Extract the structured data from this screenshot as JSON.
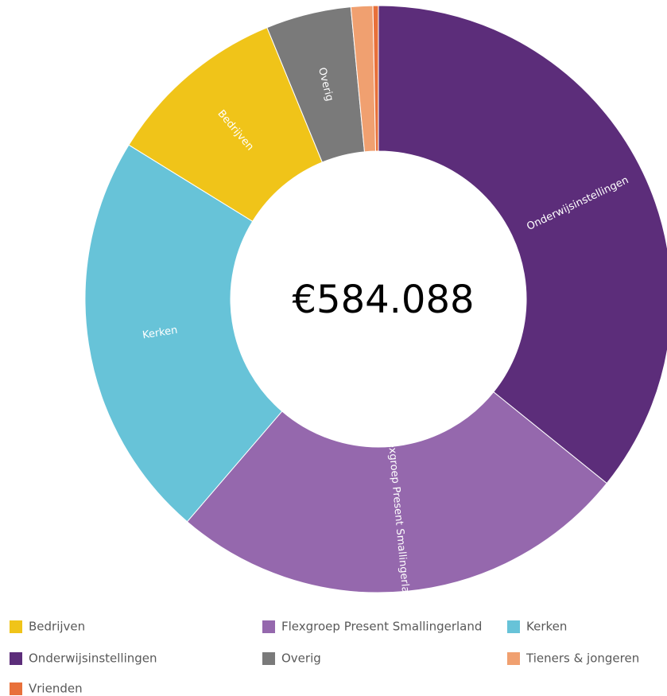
{
  "chart_data": {
    "type": "donut",
    "center_label": "€584.088",
    "categories": [
      "Onderwijsinstellingen",
      "Flexgroep Present Smallingerland",
      "Kerken",
      "Bedrijven",
      "Overig",
      "Tieners & jongeren",
      "Vrienden"
    ],
    "values": [
      35.8,
      25.5,
      22.5,
      10,
      4.7,
      1.2,
      0.3
    ],
    "colors": [
      "#5c2d7a",
      "#9568ad",
      "#67c3d8",
      "#f0c419",
      "#7a7a7a",
      "#f0a070",
      "#e8703a"
    ]
  }
}
